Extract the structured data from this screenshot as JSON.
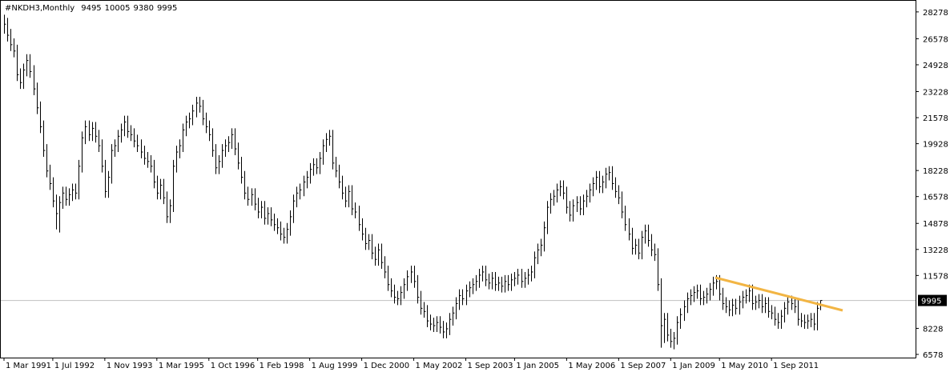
{
  "chart_data": {
    "type": "ohlc",
    "title": "#NKDH3,Monthly",
    "header_values": [
      9495,
      10005,
      9380,
      9995
    ],
    "current_price": 9995,
    "color": "#000000",
    "ylim": [
      6375,
      28880
    ],
    "yticks": [
      6578,
      8228,
      11578,
      13228,
      14878,
      16578,
      18228,
      19928,
      21578,
      23228,
      24928,
      26578,
      28278
    ],
    "categories": [
      "1 Mar 1991",
      null,
      null,
      null,
      null,
      null,
      null,
      null,
      null,
      null,
      null,
      null,
      null,
      null,
      null,
      "1 Jul 1992",
      null,
      null,
      null,
      null,
      null,
      null,
      null,
      null,
      null,
      null,
      null,
      null,
      null,
      null,
      null,
      "1 Nov 1993",
      null,
      null,
      null,
      null,
      null,
      null,
      null,
      null,
      null,
      null,
      null,
      null,
      null,
      null,
      null,
      "1 Mar 1995",
      null,
      null,
      null,
      null,
      null,
      null,
      null,
      null,
      null,
      null,
      null,
      null,
      null,
      null,
      null,
      "1 Oct 1996",
      null,
      null,
      null,
      null,
      null,
      null,
      null,
      null,
      null,
      null,
      null,
      null,
      null,
      null,
      "1 Feb 1998",
      null,
      null,
      null,
      null,
      null,
      null,
      null,
      null,
      null,
      null,
      null,
      null,
      null,
      null,
      null,
      "1 Aug 1999",
      null,
      null,
      null,
      null,
      null,
      null,
      null,
      null,
      null,
      null,
      null,
      null,
      null,
      null,
      null,
      "1 Dec 2000",
      null,
      null,
      null,
      null,
      null,
      null,
      null,
      null,
      null,
      null,
      null,
      null,
      null,
      null,
      null,
      "1 May 2002",
      null,
      null,
      null,
      null,
      null,
      null,
      null,
      null,
      null,
      null,
      null,
      null,
      null,
      null,
      null,
      "1 Sep 2003",
      null,
      null,
      null,
      null,
      null,
      null,
      null,
      null,
      null,
      null,
      null,
      null,
      null,
      null,
      "1 Jan 2005",
      null,
      null,
      null,
      null,
      null,
      null,
      null,
      null,
      null,
      null,
      null,
      null,
      null,
      null,
      null,
      "1 May 2006",
      null,
      null,
      null,
      null,
      null,
      null,
      null,
      null,
      null,
      null,
      null,
      null,
      null,
      null,
      null,
      "1 Sep 2007",
      null,
      null,
      null,
      null,
      null,
      null,
      null,
      null,
      null,
      null,
      null,
      null,
      null,
      null,
      null,
      "1 Jan 2009",
      null,
      null,
      null,
      null,
      null,
      null,
      null,
      null,
      null,
      null,
      null,
      null,
      null,
      null,
      "1 May 2010",
      null,
      null,
      null,
      null,
      null,
      null,
      null,
      null,
      null,
      null,
      null,
      null,
      null,
      null,
      null,
      "1 Sep 2011",
      null,
      null,
      null,
      null,
      null,
      null,
      null,
      null,
      null,
      null,
      null,
      null,
      null,
      null,
      null
    ],
    "high": [
      28100,
      27900,
      27200,
      26600,
      26200,
      24700,
      25000,
      25600,
      25600,
      24900,
      23800,
      22600,
      21400,
      19900,
      18600,
      17800,
      16700,
      16600,
      17200,
      17200,
      17100,
      17400,
      17400,
      18900,
      20700,
      21400,
      21400,
      21300,
      21300,
      20800,
      20200,
      18900,
      18200,
      19900,
      20200,
      20800,
      21200,
      21700,
      21700,
      21100,
      20900,
      20500,
      20200,
      19800,
      19400,
      19200,
      18900,
      17900,
      17700,
      17700,
      16900,
      16400,
      18900,
      19800,
      20200,
      21200,
      21700,
      21900,
      22400,
      22900,
      22900,
      22700,
      21900,
      21400,
      20900,
      19900,
      19200,
      19900,
      20200,
      20400,
      20900,
      20900,
      20000,
      19100,
      18200,
      17200,
      17100,
      17100,
      16500,
      16300,
      16300,
      15900,
      15900,
      15500,
      15200,
      15000,
      14600,
      14900,
      15700,
      16700,
      17200,
      17400,
      17900,
      18200,
      18700,
      19000,
      19000,
      19400,
      20200,
      20600,
      20800,
      20800,
      19100,
      18600,
      17900,
      17200,
      17300,
      17300,
      16200,
      16000,
      15200,
      14600,
      14200,
      14200,
      13400,
      13600,
      13600,
      12800,
      12200,
      11400,
      11000,
      10600,
      10900,
      11400,
      11900,
      12200,
      12200,
      11600,
      10600,
      9900,
      9700,
      9100,
      8900,
      9000,
      9000,
      8700,
      8600,
      9200,
      9600,
      10200,
      10700,
      10700,
      11000,
      11200,
      11400,
      11600,
      12000,
      12200,
      12200,
      11700,
      11800,
      11800,
      11500,
      11500,
      11600,
      11600,
      11700,
      11800,
      12000,
      12000,
      11800,
      12000,
      12200,
      13100,
      13600,
      13900,
      15000,
      16300,
      16800,
      17000,
      17400,
      17600,
      17600,
      17200,
      16300,
      16400,
      16600,
      16600,
      16700,
      17000,
      17400,
      17800,
      18200,
      18200,
      17900,
      18400,
      18500,
      18500,
      17800,
      17300,
      16900,
      16000,
      15200,
      14600,
      13900,
      13900,
      14400,
      14800,
      14800,
      14200,
      13600,
      13300,
      11400,
      9200,
      9200,
      8200,
      8000,
      9000,
      9500,
      10000,
      10500,
      10700,
      10900,
      11000,
      11000,
      10600,
      10800,
      11100,
      11500,
      11600,
      11600,
      10800,
      10200,
      10000,
      10100,
      10100,
      10300,
      10600,
      10700,
      11000,
      11000,
      10300,
      10400,
      10400,
      10200,
      10200,
      9700,
      9600,
      9200,
      9400,
      9900,
      10300,
      10300,
      10200,
      10000,
      9200,
      9100,
      9100,
      9200,
      9200,
      9900,
      10005
    ],
    "low": [
      26900,
      26400,
      25800,
      25400,
      23900,
      23400,
      23400,
      24200,
      24100,
      23000,
      21800,
      20600,
      19100,
      17800,
      17000,
      15900,
      14500,
      14300,
      15800,
      16000,
      16000,
      16300,
      16400,
      16400,
      18100,
      19900,
      20100,
      20100,
      20000,
      19400,
      18100,
      16500,
      16500,
      17400,
      19100,
      19400,
      20000,
      20400,
      20300,
      20100,
      19700,
      19400,
      19000,
      18600,
      18400,
      18100,
      17100,
      16400,
      16400,
      16100,
      14900,
      14900,
      15600,
      18100,
      19000,
      19400,
      20400,
      20900,
      21100,
      21600,
      21900,
      21100,
      20600,
      20100,
      19100,
      18000,
      18000,
      18400,
      19100,
      19400,
      19600,
      19200,
      18300,
      17400,
      16400,
      16000,
      16000,
      15700,
      15200,
      15200,
      14800,
      14800,
      14700,
      14400,
      14200,
      13800,
      13600,
      13600,
      14100,
      14900,
      15900,
      16400,
      16600,
      17100,
      17400,
      17900,
      18000,
      18000,
      18600,
      19400,
      19800,
      18300,
      17800,
      17100,
      16400,
      15900,
      15900,
      15400,
      15200,
      14400,
      13800,
      13200,
      13200,
      12600,
      12200,
      12200,
      12000,
      11400,
      10600,
      10200,
      9800,
      9700,
      9700,
      10100,
      10600,
      11100,
      10800,
      9800,
      9100,
      8900,
      8300,
      8100,
      8000,
      8000,
      7900,
      7600,
      7600,
      7800,
      8400,
      8800,
      9400,
      9700,
      9700,
      10200,
      10400,
      10600,
      10800,
      11200,
      10900,
      10700,
      10700,
      10600,
      10600,
      10500,
      10500,
      10600,
      10600,
      10900,
      11000,
      10800,
      10800,
      11000,
      11200,
      11400,
      12300,
      12800,
      13100,
      14200,
      15500,
      16000,
      16200,
      16600,
      16400,
      15500,
      15000,
      15000,
      15600,
      15400,
      15400,
      15900,
      16200,
      16600,
      17000,
      16800,
      16800,
      17100,
      17600,
      17000,
      16500,
      16100,
      15200,
      14400,
      13800,
      12900,
      12900,
      12600,
      12600,
      13600,
      13400,
      12800,
      12500,
      10600,
      7000,
      7300,
      7400,
      7000,
      6900,
      7200,
      8200,
      8700,
      9200,
      9700,
      9900,
      10100,
      9700,
      9700,
      9800,
      10000,
      10300,
      10700,
      10000,
      9400,
      9200,
      9000,
      9000,
      9100,
      9100,
      9500,
      9800,
      9900,
      9400,
      9400,
      9500,
      9200,
      9200,
      8900,
      8800,
      8400,
      8200,
      8200,
      8600,
      9100,
      9400,
      9200,
      8400,
      8300,
      8200,
      8200,
      8300,
      8100,
      8100,
      9380
    ],
    "close": [
      27500,
      26800,
      26200,
      25800,
      24300,
      23800,
      24600,
      25200,
      24500,
      23400,
      22200,
      21000,
      19500,
      18200,
      17400,
      16300,
      15500,
      16200,
      16800,
      16400,
      16700,
      17000,
      16800,
      18500,
      20300,
      21000,
      20500,
      20900,
      20400,
      19800,
      18500,
      16900,
      17800,
      19500,
      19800,
      20400,
      20800,
      21300,
      20700,
      20500,
      20100,
      19800,
      19400,
      19000,
      18800,
      18500,
      17500,
      16800,
      17300,
      16500,
      15300,
      16000,
      18500,
      19400,
      19800,
      20800,
      21300,
      21500,
      22000,
      22500,
      22300,
      21500,
      21000,
      20500,
      19500,
      18400,
      18800,
      19500,
      19800,
      20000,
      20500,
      19600,
      18700,
      17800,
      16800,
      16400,
      16700,
      16100,
      15600,
      15900,
      15200,
      15500,
      15100,
      14800,
      14600,
      14200,
      14000,
      14500,
      15300,
      16300,
      16800,
      17000,
      17500,
      17800,
      18300,
      18600,
      18400,
      19000,
      19800,
      20200,
      20400,
      18700,
      18200,
      17500,
      16800,
      16300,
      16900,
      15800,
      15600,
      14800,
      14200,
      13600,
      13800,
      13000,
      12600,
      13200,
      12400,
      11800,
      11000,
      10600,
      10200,
      10100,
      10500,
      11000,
      11500,
      11800,
      11200,
      10200,
      9500,
      9300,
      8700,
      8500,
      8400,
      8600,
      8300,
      8000,
      8200,
      8800,
      9200,
      9800,
      10300,
      10100,
      10600,
      10800,
      11000,
      11200,
      11600,
      11800,
      11300,
      11100,
      11400,
      11000,
      11100,
      10900,
      11200,
      11000,
      11300,
      11400,
      11600,
      11200,
      11400,
      11600,
      11800,
      12700,
      13200,
      13500,
      14600,
      15900,
      16400,
      16600,
      17000,
      17200,
      16800,
      15900,
      15400,
      16000,
      16200,
      15800,
      16300,
      16600,
      17000,
      17400,
      17800,
      17200,
      17500,
      18000,
      18100,
      17400,
      16900,
      16500,
      15600,
      14800,
      14200,
      13300,
      13500,
      13000,
      14000,
      14400,
      13800,
      13200,
      12900,
      11000,
      8400,
      8800,
      7800,
      7400,
      7600,
      8600,
      9100,
      9600,
      10100,
      10300,
      10500,
      10600,
      10100,
      10200,
      10400,
      10700,
      11100,
      11200,
      10400,
      9800,
      9600,
      9400,
      9700,
      9500,
      9900,
      10200,
      10300,
      10600,
      9800,
      9900,
      10000,
      9600,
      9800,
      9300,
      9200,
      8800,
      8600,
      9000,
      9500,
      9900,
      9800,
      9600,
      8800,
      8700,
      8600,
      8700,
      8800,
      8500,
      9500,
      9995
    ]
  }
}
